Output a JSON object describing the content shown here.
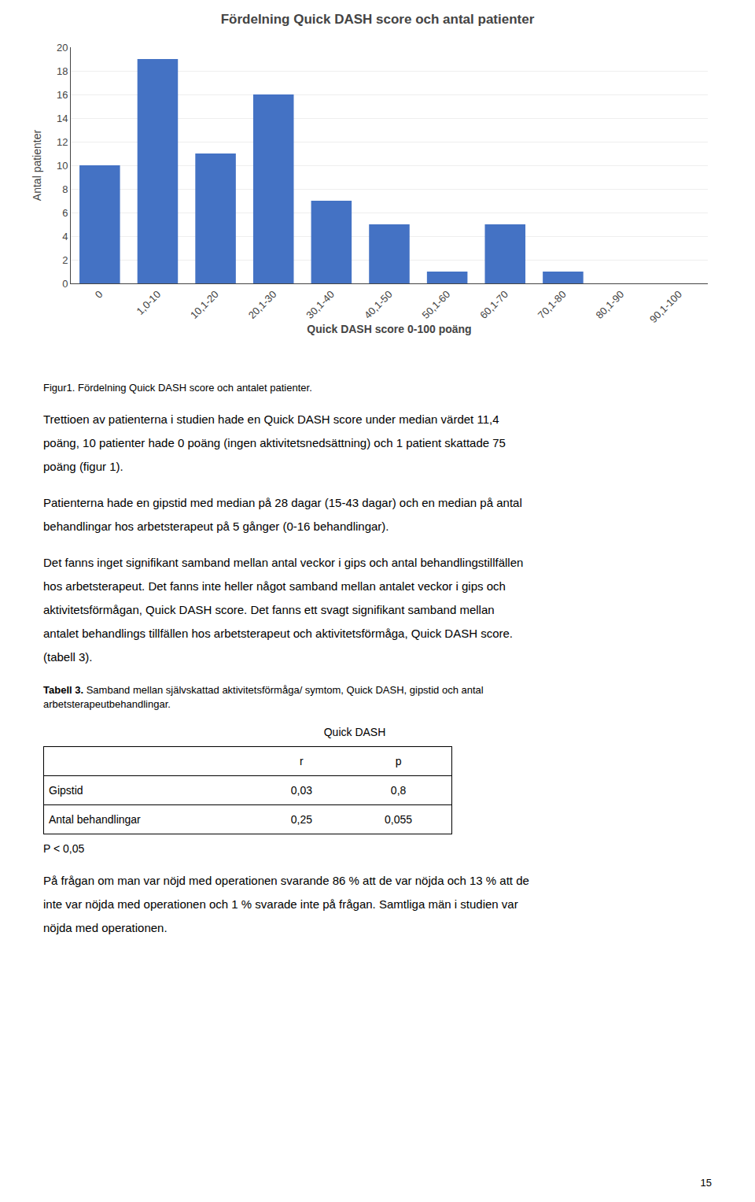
{
  "chart_data": {
    "type": "bar",
    "title": "Fördelning Quick DASH score och antal patienter",
    "categories": [
      "0",
      "1,0-10",
      "10,1-20",
      "20,1-30",
      "30,1-40",
      "40,1-50",
      "50,1-60",
      "60,1-70",
      "70,1-80",
      "80,1-90",
      "90,1-100"
    ],
    "values": [
      10,
      19,
      11,
      16,
      7,
      5,
      1,
      5,
      1,
      0,
      0
    ],
    "color": "#4472C4",
    "xlabel": "Quick DASH score 0-100 poäng",
    "ylabel": "Antal patienter",
    "ylim": [
      0,
      20
    ],
    "yticks": [
      0,
      2,
      4,
      6,
      8,
      10,
      12,
      14,
      16,
      18,
      20
    ],
    "grid": true
  },
  "caption": "Figur1. Fördelning Quick DASH score och antalet patienter.",
  "paragraphs": [
    [
      "Trettioen av patienterna i studien hade en Quick DASH score under median värdet 11,4",
      "poäng, 10 patienter hade 0 poäng (ingen aktivitetsnedsättning) och 1 patient skattade 75",
      "poäng (figur 1)."
    ],
    [
      "Patienterna hade en gipstid med median på 28 dagar (15-43 dagar) och en median på antal",
      "behandlingar hos arbetsterapeut på 5 gånger (0-16 behandlingar)."
    ],
    [
      "Det fanns inget signifikant samband mellan antal veckor i gips och antal behandlingstillfällen",
      "hos arbetsterapeut. Det fanns inte heller något samband mellan antalet veckor i gips och",
      "aktivitetsförmågan, Quick DASH score. Det fanns ett svagt signifikant samband mellan",
      "antalet behandlings tillfällen hos arbetsterapeut och aktivitetsförmåga, Quick DASH score.",
      "(tabell 3)."
    ]
  ],
  "table": {
    "caption_bold": "Tabell 3.",
    "caption": [
      " Samband mellan självskattad aktivitetsförmåga/ symtom, Quick DASH, gipstid och antal",
      "arbetsterapeutbehandlingar."
    ],
    "header": "Quick DASH",
    "columns": [
      "r",
      "p"
    ],
    "rows": [
      [
        "Gipstid",
        "0,03",
        "0,8"
      ],
      [
        "Antal behandlingar",
        "0,25",
        "0,055"
      ]
    ],
    "note": "P < 0,05"
  },
  "paragraphs_after": [
    [
      "På frågan om man var nöjd med operationen svarande 86 % att de var nöjda och 13 % att de",
      "inte var nöjda med operationen och 1 % svarade inte på frågan. Samtliga män i studien var",
      "nöjda med operationen."
    ]
  ],
  "page_number": "15"
}
